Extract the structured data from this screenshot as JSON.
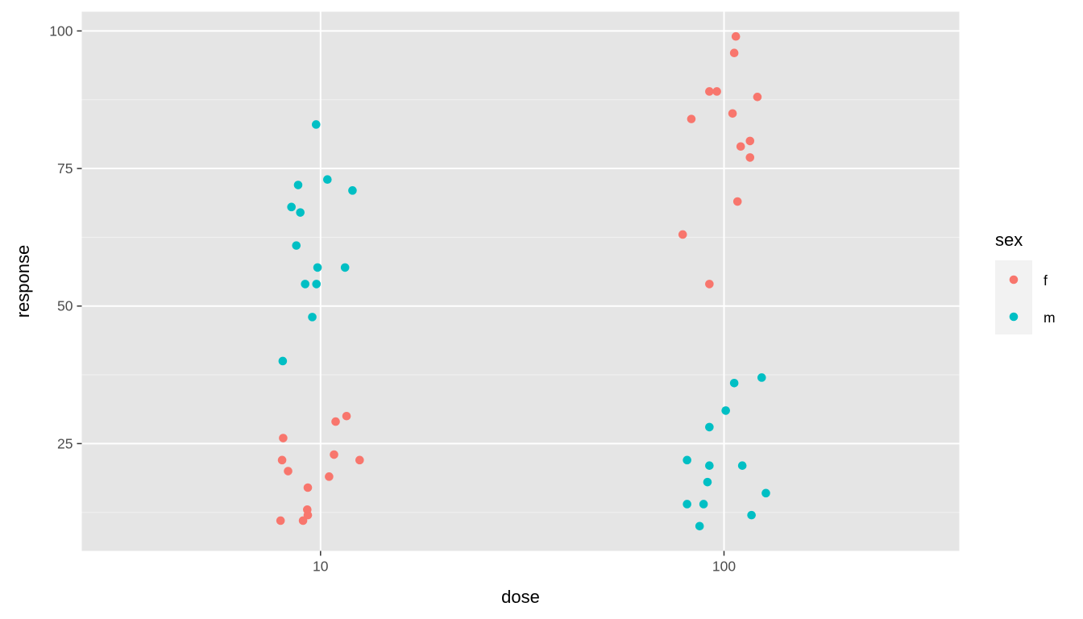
{
  "chart_data": {
    "type": "scatter",
    "xlabel": "dose",
    "ylabel": "response",
    "x_scale": "log10",
    "xlim": [
      2.56,
      383
    ],
    "ylim": [
      5.5,
      103.5
    ],
    "x_ticks": [
      10,
      100
    ],
    "x_tick_labels": [
      "10",
      "100"
    ],
    "x_minor_ticks": [],
    "y_ticks": [
      25,
      50,
      75,
      100
    ],
    "y_tick_labels": [
      "25",
      "50",
      "75",
      "100"
    ],
    "y_minor_ticks": [
      12.5,
      37.5,
      62.5,
      87.5
    ],
    "grid": true,
    "panel_background": "#e5e5e5",
    "legend": {
      "title": "sex",
      "position": "right",
      "entries": [
        {
          "label": "f",
          "color": "#f8766d"
        },
        {
          "label": "m",
          "color": "#00bfc4"
        }
      ]
    },
    "series": [
      {
        "name": "f",
        "color": "#f8766d",
        "points": [
          {
            "x": 8.08,
            "y": 26
          },
          {
            "x": 8.03,
            "y": 22
          },
          {
            "x": 8.31,
            "y": 20
          },
          {
            "x": 9.3,
            "y": 17
          },
          {
            "x": 9.27,
            "y": 13
          },
          {
            "x": 9.3,
            "y": 12
          },
          {
            "x": 9.05,
            "y": 11
          },
          {
            "x": 7.96,
            "y": 11
          },
          {
            "x": 10.5,
            "y": 19
          },
          {
            "x": 10.8,
            "y": 23
          },
          {
            "x": 10.9,
            "y": 29
          },
          {
            "x": 11.6,
            "y": 30
          },
          {
            "x": 12.5,
            "y": 22
          },
          {
            "x": 107,
            "y": 99
          },
          {
            "x": 106,
            "y": 96
          },
          {
            "x": 92,
            "y": 89
          },
          {
            "x": 96,
            "y": 89
          },
          {
            "x": 121,
            "y": 88
          },
          {
            "x": 83,
            "y": 84
          },
          {
            "x": 105,
            "y": 85
          },
          {
            "x": 116,
            "y": 80
          },
          {
            "x": 110,
            "y": 79
          },
          {
            "x": 116,
            "y": 77
          },
          {
            "x": 108,
            "y": 69
          },
          {
            "x": 79,
            "y": 63
          },
          {
            "x": 92,
            "y": 54
          }
        ]
      },
      {
        "name": "m",
        "color": "#00bfc4",
        "points": [
          {
            "x": 9.75,
            "y": 83
          },
          {
            "x": 10.4,
            "y": 73
          },
          {
            "x": 8.8,
            "y": 72
          },
          {
            "x": 12.0,
            "y": 71
          },
          {
            "x": 8.47,
            "y": 68
          },
          {
            "x": 8.91,
            "y": 67
          },
          {
            "x": 8.71,
            "y": 61
          },
          {
            "x": 9.83,
            "y": 57
          },
          {
            "x": 11.5,
            "y": 57
          },
          {
            "x": 9.16,
            "y": 54
          },
          {
            "x": 9.77,
            "y": 54
          },
          {
            "x": 9.54,
            "y": 48
          },
          {
            "x": 8.06,
            "y": 40
          },
          {
            "x": 124,
            "y": 37
          },
          {
            "x": 106,
            "y": 36
          },
          {
            "x": 101,
            "y": 31
          },
          {
            "x": 92,
            "y": 28
          },
          {
            "x": 81,
            "y": 22
          },
          {
            "x": 92,
            "y": 21
          },
          {
            "x": 111,
            "y": 21
          },
          {
            "x": 91,
            "y": 18
          },
          {
            "x": 127,
            "y": 16
          },
          {
            "x": 81,
            "y": 14
          },
          {
            "x": 89,
            "y": 14
          },
          {
            "x": 117,
            "y": 12
          },
          {
            "x": 87,
            "y": 10
          }
        ]
      }
    ]
  }
}
